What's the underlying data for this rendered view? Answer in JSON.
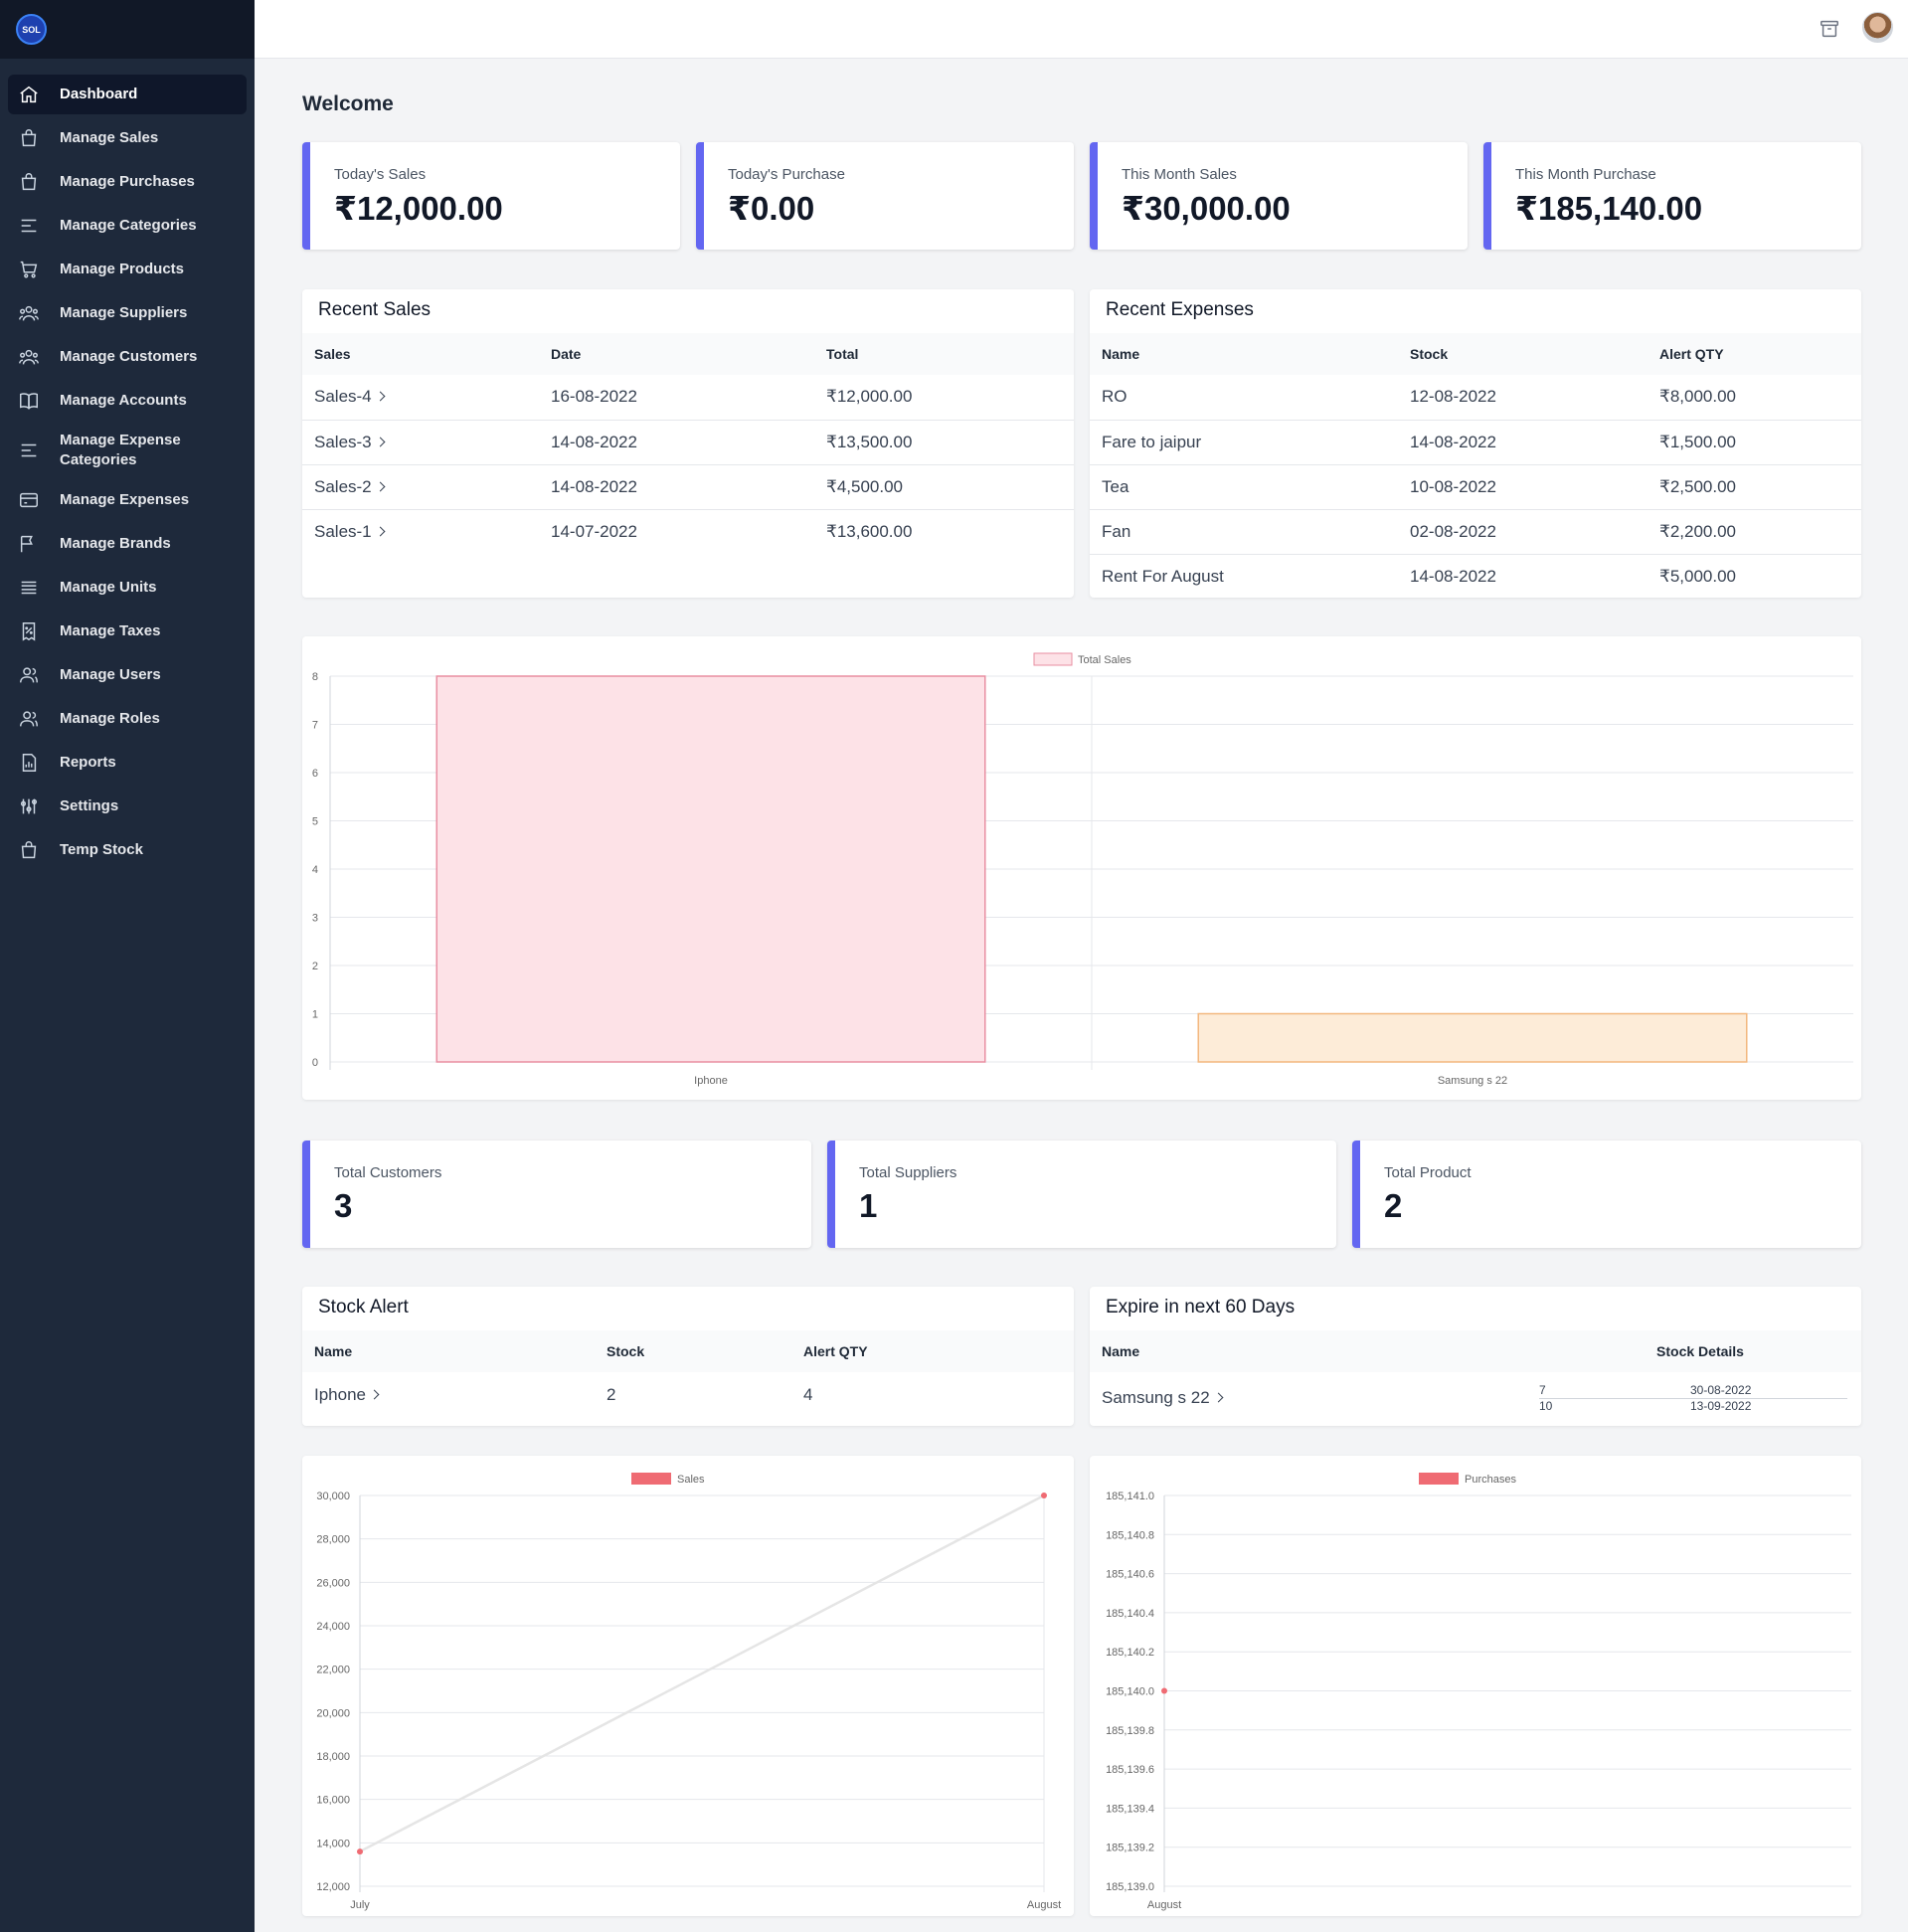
{
  "app": {
    "logo_text": "SOL"
  },
  "sidebar": {
    "items": [
      {
        "label": "Dashboard",
        "icon": "home-icon"
      },
      {
        "label": "Manage Sales",
        "icon": "shopping-bag-icon"
      },
      {
        "label": "Manage Purchases",
        "icon": "shopping-bag-icon"
      },
      {
        "label": "Manage Categories",
        "icon": "menu-alt-icon"
      },
      {
        "label": "Manage Products",
        "icon": "shopping-cart-icon"
      },
      {
        "label": "Manage Suppliers",
        "icon": "user-group-icon"
      },
      {
        "label": "Manage Customers",
        "icon": "user-group-icon"
      },
      {
        "label": "Manage Accounts",
        "icon": "book-open-icon"
      },
      {
        "label": "Manage Expense Categories",
        "icon": "menu-alt-icon"
      },
      {
        "label": "Manage Expenses",
        "icon": "credit-card-icon"
      },
      {
        "label": "Manage Brands",
        "icon": "flag-icon"
      },
      {
        "label": "Manage Units",
        "icon": "menu-icon"
      },
      {
        "label": "Manage Taxes",
        "icon": "receipt-tax-icon"
      },
      {
        "label": "Manage Users",
        "icon": "users-icon"
      },
      {
        "label": "Manage Roles",
        "icon": "users-icon"
      },
      {
        "label": "Reports",
        "icon": "document-report-icon"
      },
      {
        "label": "Settings",
        "icon": "adjustments-icon"
      },
      {
        "label": "Temp Stock",
        "icon": "shopping-bag-icon"
      }
    ]
  },
  "header": {
    "archive_icon": "archive-icon",
    "avatar_icon": "user-avatar"
  },
  "welcome": "Welcome",
  "stats_top": [
    {
      "label": "Today's Sales",
      "value": "₹12,000.00"
    },
    {
      "label": "Today's Purchase",
      "value": "₹0.00"
    },
    {
      "label": "This Month Sales",
      "value": "₹30,000.00"
    },
    {
      "label": "This Month Purchase",
      "value": "₹185,140.00"
    }
  ],
  "recent_sales": {
    "title": "Recent Sales",
    "columns": [
      "Sales",
      "Date",
      "Total"
    ],
    "rows": [
      [
        "Sales-4",
        "16-08-2022",
        "₹12,000.00"
      ],
      [
        "Sales-3",
        "14-08-2022",
        "₹13,500.00"
      ],
      [
        "Sales-2",
        "14-08-2022",
        "₹4,500.00"
      ],
      [
        "Sales-1",
        "14-07-2022",
        "₹13,600.00"
      ]
    ]
  },
  "recent_expenses": {
    "title": "Recent Expenses",
    "columns": [
      "Name",
      "Stock",
      "Alert QTY"
    ],
    "rows": [
      [
        "RO",
        "12-08-2022",
        "₹8,000.00"
      ],
      [
        "Fare to jaipur",
        "14-08-2022",
        "₹1,500.00"
      ],
      [
        "Tea",
        "10-08-2022",
        "₹2,500.00"
      ],
      [
        "Fan",
        "02-08-2022",
        "₹2,200.00"
      ],
      [
        "Rent For August",
        "14-08-2022",
        "₹5,000.00"
      ]
    ]
  },
  "stats_bottom": [
    {
      "label": "Total Customers",
      "value": "3"
    },
    {
      "label": "Total Suppliers",
      "value": "1"
    },
    {
      "label": "Total Product",
      "value": "2"
    }
  ],
  "stock_alert": {
    "title": "Stock Alert",
    "columns": [
      "Name",
      "Stock",
      "Alert QTY"
    ],
    "rows": [
      [
        "Iphone",
        "2",
        "4"
      ]
    ]
  },
  "expire": {
    "title": "Expire in next 60 Days",
    "columns": [
      "Name",
      "Stock Details"
    ],
    "rows": [
      {
        "name": "Samsung s 22",
        "details": [
          [
            "7",
            "30-08-2022"
          ],
          [
            "10",
            "13-09-2022"
          ]
        ]
      }
    ]
  },
  "chart_data": [
    {
      "type": "bar",
      "categories": [
        "Iphone",
        "Samsung s 22"
      ],
      "series": [
        {
          "name": "Total Sales",
          "values": [
            8,
            1
          ]
        }
      ],
      "bar_fill_colors": [
        "#fde2e7",
        "#fdecd8"
      ],
      "bar_border_colors": [
        "#e88ea1",
        "#f3b77e"
      ],
      "ylim": [
        0,
        8
      ],
      "yticks": [
        "0",
        "1",
        "2",
        "3",
        "4",
        "5",
        "6",
        "7",
        "8"
      ],
      "legend": "top-center",
      "legend_color": "#fde2e7",
      "grid": true
    },
    {
      "type": "line",
      "categories": [
        "July",
        "August"
      ],
      "series": [
        {
          "name": "Sales",
          "values": [
            13600,
            30000
          ]
        }
      ],
      "ylim": [
        12000,
        30000
      ],
      "yticks": [
        "12,000",
        "14,000",
        "16,000",
        "18,000",
        "20,000",
        "22,000",
        "24,000",
        "26,000",
        "28,000",
        "30,000"
      ],
      "line_color": "#e5e5e5",
      "point_color": "#ef6b73",
      "legend": "top-center",
      "legend_color": "#ef6b73",
      "grid": true
    },
    {
      "type": "line",
      "categories": [
        "August"
      ],
      "series": [
        {
          "name": "Purchases",
          "values": [
            185140
          ]
        }
      ],
      "ylim": [
        185139.0,
        185141.0
      ],
      "yticks": [
        "185,139.0",
        "185,139.2",
        "185,139.4",
        "185,139.6",
        "185,139.8",
        "185,140.0",
        "185,140.2",
        "185,140.4",
        "185,140.6",
        "185,140.8",
        "185,141.0"
      ],
      "point_color": "#ef6b73",
      "legend": "top-center",
      "legend_color": "#ef6b73",
      "grid": true
    }
  ]
}
